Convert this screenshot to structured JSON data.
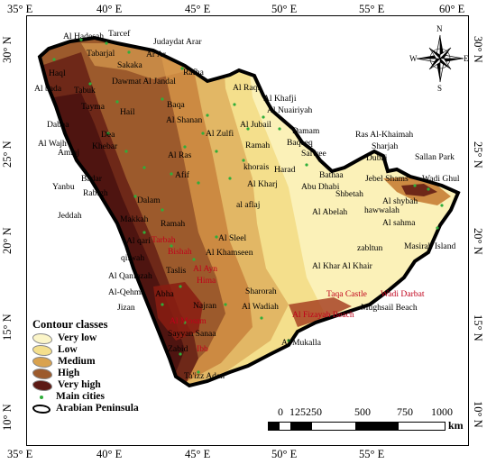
{
  "map": {
    "longitude_labels": [
      "35° E",
      "40° E",
      "45° E",
      "50° E",
      "55° E",
      "60° E"
    ],
    "latitude_labels": [
      "30° N",
      "25° N",
      "20° N",
      "15° N",
      "10° N"
    ],
    "cities_black": {
      "al_hadesah": "Al Hadesah",
      "tarcef": "Tarcef",
      "judaydat_arar": "Judaydat Arar",
      "tabarjal": "Tabarjal",
      "ar_ar": "Ar Ar",
      "sakaka": "Sakaka",
      "rafha": "Rafha",
      "haql": "Haql",
      "dawmat": "Dawmat Al Jandal",
      "al_bada": "Al bada",
      "tabuk": "Tabuk",
      "al_raqi": "Al Raqi",
      "al_khafji": "Al Khafji",
      "al_nuairiyah": "Al Nuairiyah",
      "tayma": "Tayma",
      "hail": "Hail",
      "baqa": "Baqa",
      "al_shanan": "Al Shanan",
      "al_jubail": "Al Jubail",
      "damam": "Damam",
      "dabaa": "Dabaa",
      "dea": "Dea",
      "al_zulfi": "Al Zulfi",
      "baqeeq": "Baqeeq",
      "al_wajh": "Al Wajh",
      "amlaj": "Amlaj",
      "khebar": "Khebar",
      "ramah": "Ramah",
      "ras_al_khaimah": "Ras Al-Khaimah",
      "sharjah": "Sharjah",
      "salwee": "Salwee",
      "dubai": "Dubai",
      "sallan_park": "Sallan Park",
      "al_ras": "Al Ras",
      "khorais": "khorais",
      "harad": "Harad",
      "bathaa": "Bathaa",
      "yanbu": "Yanbu",
      "badar": "Badar",
      "afif": "Afif",
      "al_kharj": "Al Kharj",
      "abu_dhabi": "Abu Dhabi",
      "jebel_shams": "Jebel Shams",
      "wadi_ghul": "Wadi Ghul",
      "rabigh": "Rabigh",
      "shbetah": "Shbetah",
      "al_shybah": "Al shybah",
      "jeddah": "Jeddah",
      "dalam": "Dalam",
      "al_aflaj": "al aflaj",
      "al_abelah": "Al Abelah",
      "hawwalah": "hawwalah",
      "makkah": "Makkah",
      "ramah2": "Ramah",
      "al_sahma": "Al sahma",
      "al_qari": "Al qari",
      "qilwah": "qilwah",
      "al_sleel": "Al Sleel",
      "masirah": "Masirah Island",
      "al_khamseen": "Al Khamseen",
      "zabltun": "zabltun",
      "al_qanfazah": "Al Qanfazah",
      "taslis": "Taslis",
      "al_khar": "Al Khar Al Khair",
      "al_qehma": "Al-Qehma",
      "abha": "Abha",
      "sharorah": "Sharorah",
      "jizan": "Jizan",
      "najran": "Najran",
      "al_wadiah": "Al Wadiah",
      "mughsail": "Mughsail Beach",
      "sayyan": "Sayyan Sanaa",
      "al_mukalla": "Al Mukalla",
      "zabid": "Zabid",
      "taizz_aden": "Ta'izz Aden"
    },
    "cities_red": {
      "tarbah": "Tarbah",
      "bishah": "Bishah",
      "al_ayn": "Al Ayn",
      "hima": "Hima",
      "taqa_castle": "Taqa Castle",
      "wadi_darbat": "Wadi Darbat",
      "al_fizayah": "Al Fizayah Beach",
      "al_mosam": "Al Mosam",
      "ibb": "Ibb"
    }
  },
  "legend": {
    "title": "Contour classes",
    "items": [
      {
        "label": "Very low",
        "color": "#fbf5c8"
      },
      {
        "label": "Low",
        "color": "#f4df8c"
      },
      {
        "label": "Medium",
        "color": "#d9a24e"
      },
      {
        "label": "High",
        "color": "#9c5a2c"
      },
      {
        "label": "Very high",
        "color": "#5c1a14"
      }
    ],
    "main_cities": "Main cities",
    "main_cities_color": "#2fae3a",
    "boundary": "Arabian Peninsula"
  },
  "scalebar": {
    "labels": [
      "0",
      "125250",
      "500",
      "750",
      "1000"
    ],
    "unit": "km"
  },
  "compass": {
    "n": "N",
    "s": "S",
    "e": "E",
    "w": "W"
  }
}
